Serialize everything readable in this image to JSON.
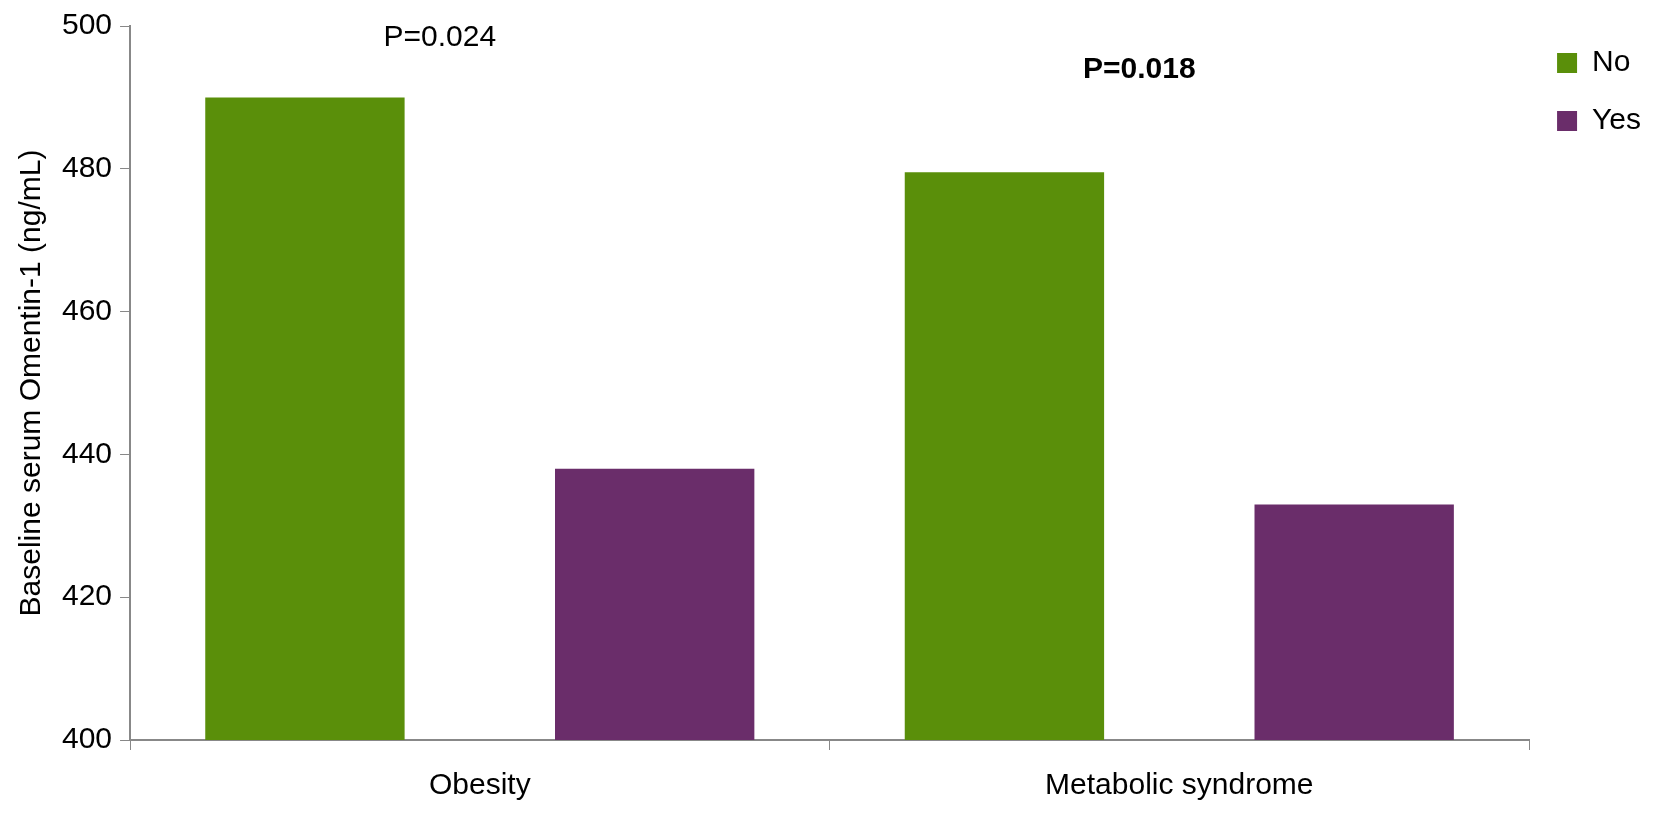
{
  "chart_data": {
    "type": "bar",
    "ylabel": "Baseline serum Omentin-1 (ng/mL)",
    "categories": [
      "Obesity",
      "Metabolic syndrome"
    ],
    "series": [
      {
        "name": "No",
        "color": "#5a8f0a",
        "values": [
          490,
          479.5
        ]
      },
      {
        "name": "Yes",
        "color": "#6a2d6a",
        "values": [
          438,
          433
        ]
      }
    ],
    "ylim": [
      400,
      500
    ],
    "yticks": [
      400,
      420,
      440,
      460,
      480,
      500
    ],
    "grid": false,
    "legend": "right",
    "annotations": [
      "P=0.024",
      "P=0.018"
    ]
  }
}
